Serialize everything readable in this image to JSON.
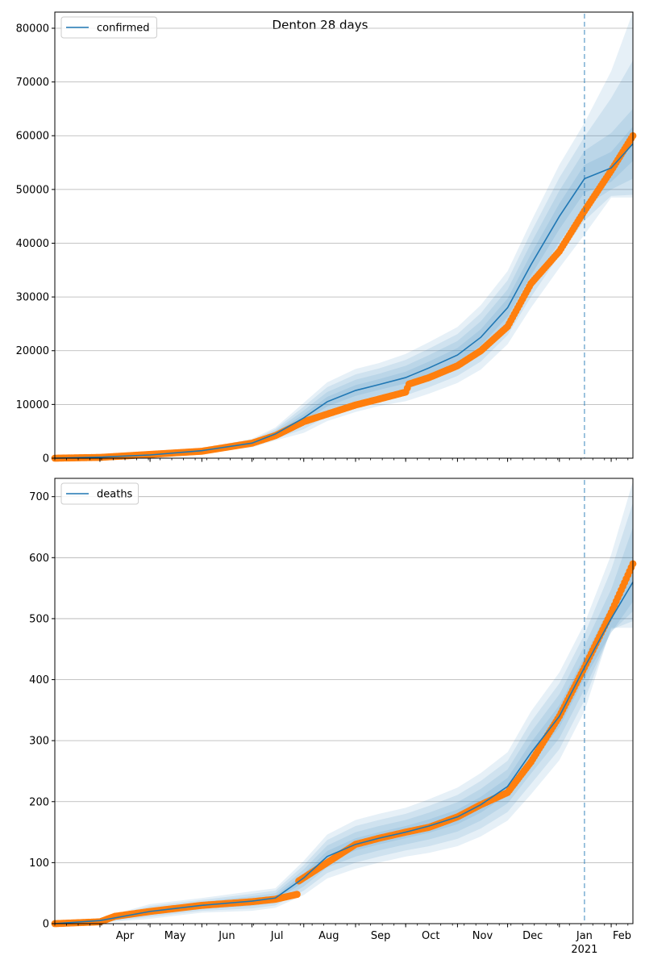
{
  "figure": {
    "title": "Denton 28 days"
  },
  "colors": {
    "model_line": "#1f77b4",
    "band_fill": "#1f77b4",
    "observed_dots": "#ff7f0e",
    "forecast_marker": "#1f77b4",
    "grid": "#b0b0b0"
  },
  "x_axis": {
    "month_labels": [
      {
        "label": "Apr",
        "date": "2020-04-01"
      },
      {
        "label": "May",
        "date": "2020-05-01"
      },
      {
        "label": "Jun",
        "date": "2020-06-01"
      },
      {
        "label": "Jul",
        "date": "2020-07-01"
      },
      {
        "label": "Aug",
        "date": "2020-08-01"
      },
      {
        "label": "Sep",
        "date": "2020-09-01"
      },
      {
        "label": "Oct",
        "date": "2020-10-01"
      },
      {
        "label": "Nov",
        "date": "2020-11-01"
      },
      {
        "label": "Dec",
        "date": "2020-12-01"
      },
      {
        "label": "Jan",
        "date": "2021-01-01"
      },
      {
        "label": "Feb",
        "date": "2021-02-01"
      }
    ],
    "year_label": "2021"
  },
  "chart_data": [
    {
      "type": "line",
      "legend": [
        "confirmed"
      ],
      "legend_position": "upper-left",
      "grid": "y",
      "xlim": [
        "2020-03-05",
        "2021-02-14"
      ],
      "ylim": [
        0,
        83000
      ],
      "yticks": [
        0,
        10000,
        20000,
        30000,
        40000,
        50000,
        60000,
        70000,
        80000
      ],
      "forecast_start": "2021-01-16",
      "series": [
        {
          "name": "confirmed",
          "kind": "model",
          "points": [
            [
              "2020-03-05",
              0
            ],
            [
              "2020-04-01",
              200
            ],
            [
              "2020-05-01",
              600
            ],
            [
              "2020-06-01",
              1400
            ],
            [
              "2020-07-01",
              2800
            ],
            [
              "2020-07-15",
              4500
            ],
            [
              "2020-08-01",
              7500
            ],
            [
              "2020-08-15",
              10500
            ],
            [
              "2020-09-01",
              12600
            ],
            [
              "2020-09-15",
              13700
            ],
            [
              "2020-10-01",
              15000
            ],
            [
              "2020-10-15",
              16800
            ],
            [
              "2020-11-01",
              19200
            ],
            [
              "2020-11-15",
              22500
            ],
            [
              "2020-12-01",
              28000
            ],
            [
              "2020-12-15",
              36000
            ],
            [
              "2021-01-01",
              45000
            ],
            [
              "2021-01-16",
              52000
            ],
            [
              "2021-02-01",
              54000
            ],
            [
              "2021-02-14",
              58500
            ]
          ],
          "bands": [
            {
              "lower": [
                0,
                180,
                560,
                1300,
                2600,
                4200,
                6800,
                9600,
                11600,
                12700,
                13900,
                15600,
                17900,
                21000,
                26300,
                34000,
                42600,
                49400,
                51400,
                55300
              ],
              "upper": [
                0,
                220,
                640,
                1500,
                3000,
                4800,
                8200,
                11400,
                13600,
                14700,
                16100,
                18000,
                20500,
                24000,
                29700,
                38000,
                47400,
                54600,
                57000,
                61700
              ]
            },
            {
              "lower": [
                0,
                160,
                520,
                1200,
                2400,
                3900,
                6100,
                8700,
                10600,
                11700,
                12800,
                14400,
                16600,
                19500,
                24600,
                32000,
                40200,
                46800,
                50000,
                52000
              ],
              "upper": [
                0,
                240,
                680,
                1600,
                3200,
                5100,
                8900,
                12300,
                14600,
                15700,
                17200,
                19200,
                21800,
                25500,
                31400,
                40000,
                49800,
                57200,
                60500,
                65000
              ]
            },
            {
              "lower": [
                0,
                140,
                480,
                1100,
                2200,
                3600,
                5400,
                7800,
                9600,
                10700,
                11700,
                13200,
                15300,
                18000,
                22900,
                30000,
                37800,
                44200,
                48800,
                49000
              ],
              "upper": [
                0,
                260,
                720,
                1700,
                3400,
                5400,
                9600,
                13200,
                15600,
                16700,
                18300,
                20400,
                23100,
                27000,
                33100,
                42000,
                52200,
                59800,
                67000,
                74000
              ]
            },
            {
              "lower": [
                0,
                120,
                440,
                1000,
                2000,
                3300,
                4700,
                6900,
                8600,
                9700,
                10600,
                12000,
                14000,
                16500,
                21200,
                28000,
                35400,
                41600,
                48500,
                48500
              ],
              "upper": [
                0,
                280,
                760,
                1800,
                3600,
                5700,
                10300,
                14100,
                16600,
                17700,
                19400,
                21600,
                24400,
                28500,
                34800,
                44000,
                54600,
                62400,
                72000,
                83000
              ]
            }
          ]
        },
        {
          "name": "observed",
          "kind": "observed",
          "points": [
            [
              "2020-03-05",
              0
            ],
            [
              "2020-04-01",
              150
            ],
            [
              "2020-05-01",
              700
            ],
            [
              "2020-06-01",
              1300
            ],
            [
              "2020-07-01",
              2800
            ],
            [
              "2020-07-15",
              4200
            ],
            [
              "2020-08-01",
              6800
            ],
            [
              "2020-08-15",
              8200
            ],
            [
              "2020-09-01",
              9900
            ],
            [
              "2020-09-15",
              11000
            ],
            [
              "2020-10-01",
              12300
            ],
            [
              "2020-10-03",
              13800
            ],
            [
              "2020-10-15",
              15000
            ],
            [
              "2020-11-01",
              17200
            ],
            [
              "2020-11-15",
              20000
            ],
            [
              "2020-12-01",
              24500
            ],
            [
              "2020-12-15",
              32500
            ],
            [
              "2021-01-01",
              38500
            ],
            [
              "2021-01-16",
              46000
            ],
            [
              "2021-02-01",
              53500
            ],
            [
              "2021-02-14",
              60000
            ]
          ]
        }
      ]
    },
    {
      "type": "line",
      "legend": [
        "deaths"
      ],
      "legend_position": "upper-left",
      "grid": "y",
      "xlim": [
        "2020-03-05",
        "2021-02-14"
      ],
      "ylim": [
        0,
        730
      ],
      "yticks": [
        0,
        100,
        200,
        300,
        400,
        500,
        600,
        700
      ],
      "forecast_start": "2021-01-16",
      "series": [
        {
          "name": "deaths",
          "kind": "model",
          "points": [
            [
              "2020-03-05",
              0
            ],
            [
              "2020-04-01",
              5
            ],
            [
              "2020-05-01",
              20
            ],
            [
              "2020-06-01",
              30
            ],
            [
              "2020-07-01",
              37
            ],
            [
              "2020-07-15",
              42
            ],
            [
              "2020-08-01",
              75
            ],
            [
              "2020-08-15",
              110
            ],
            [
              "2020-09-01",
              130
            ],
            [
              "2020-09-15",
              140
            ],
            [
              "2020-10-01",
              150
            ],
            [
              "2020-10-15",
              160
            ],
            [
              "2020-11-01",
              175
            ],
            [
              "2020-11-15",
              195
            ],
            [
              "2020-12-01",
              225
            ],
            [
              "2020-12-15",
              280
            ],
            [
              "2021-01-01",
              340
            ],
            [
              "2021-01-16",
              420
            ],
            [
              "2021-02-01",
              500
            ],
            [
              "2021-02-14",
              560
            ]
          ],
          "bands": [
            {
              "lower": [
                0,
                4,
                17,
                27,
                33,
                38,
                68,
                101,
                120,
                130,
                140,
                149,
                163,
                182,
                211,
                263,
                322,
                402,
                477,
                528
              ],
              "upper": [
                0,
                6,
                23,
                33,
                41,
                46,
                82,
                119,
                140,
                150,
                160,
                171,
                187,
                208,
                239,
                297,
                358,
                438,
                523,
                592
              ]
            },
            {
              "lower": [
                0,
                3,
                14,
                24,
                29,
                34,
                61,
                92,
                110,
                120,
                130,
                138,
                151,
                169,
                197,
                246,
                304,
                384,
                478,
                512
              ],
              "upper": [
                0,
                7,
                26,
                36,
                45,
                50,
                89,
                128,
                150,
                160,
                170,
                182,
                199,
                221,
                253,
                314,
                376,
                456,
                548,
                650
              ]
            },
            {
              "lower": [
                0,
                2,
                11,
                21,
                25,
                30,
                54,
                83,
                100,
                110,
                120,
                127,
                139,
                156,
                183,
                229,
                286,
                366,
                482,
                496
              ],
              "upper": [
                0,
                8,
                29,
                39,
                49,
                54,
                96,
                137,
                160,
                170,
                180,
                193,
                211,
                234,
                267,
                331,
                394,
                474,
                580,
                690
              ]
            },
            {
              "lower": [
                0,
                1,
                8,
                18,
                21,
                26,
                47,
                74,
                90,
                100,
                110,
                116,
                127,
                143,
                169,
                212,
                268,
                348,
                485,
                485
              ],
              "upper": [
                0,
                9,
                32,
                42,
                53,
                58,
                103,
                146,
                170,
                180,
                190,
                204,
                223,
                247,
                281,
                348,
                412,
                492,
                605,
                725
              ]
            }
          ]
        },
        {
          "name": "observed",
          "kind": "observed",
          "points": [
            [
              "2020-03-05",
              0
            ],
            [
              "2020-04-01",
              3
            ],
            [
              "2020-04-10",
              12
            ],
            [
              "2020-05-01",
              20
            ],
            [
              "2020-06-01",
              30
            ],
            [
              "2020-07-01",
              36
            ],
            [
              "2020-07-15",
              40
            ],
            [
              "2020-07-28",
              48
            ],
            [
              "2020-07-29",
              70
            ],
            [
              "2020-08-15",
              100
            ],
            [
              "2020-09-01",
              130
            ],
            [
              "2020-09-15",
              140
            ],
            [
              "2020-10-01",
              150
            ],
            [
              "2020-10-15",
              158
            ],
            [
              "2020-11-01",
              175
            ],
            [
              "2020-11-15",
              195
            ],
            [
              "2020-12-01",
              215
            ],
            [
              "2020-12-15",
              265
            ],
            [
              "2021-01-01",
              340
            ],
            [
              "2021-01-16",
              420
            ],
            [
              "2021-02-01",
              510
            ],
            [
              "2021-02-14",
              590
            ]
          ]
        }
      ]
    }
  ]
}
